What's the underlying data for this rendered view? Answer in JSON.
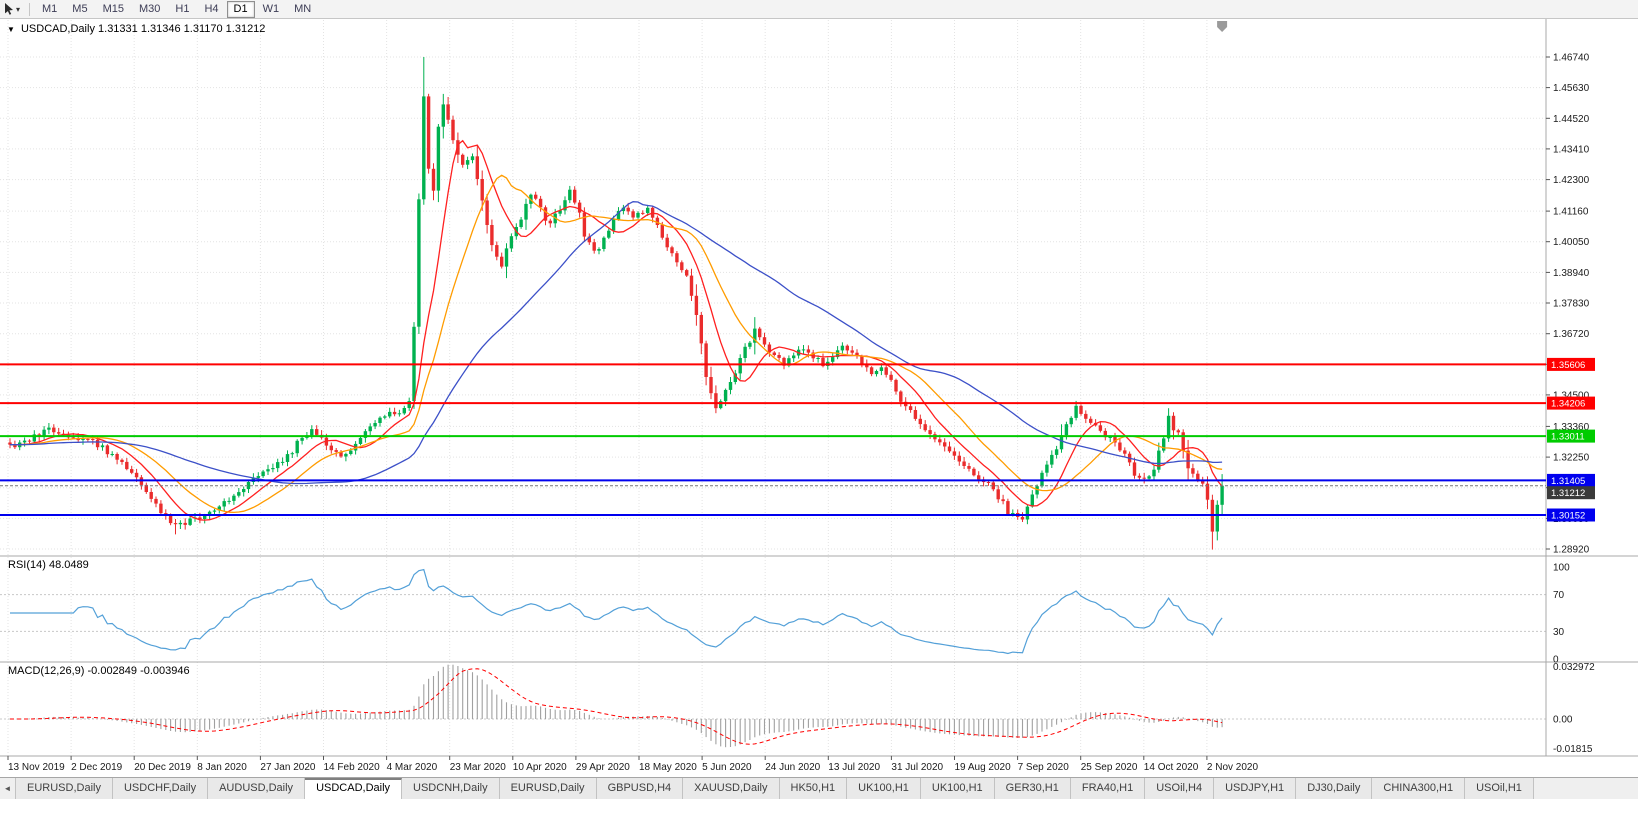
{
  "toolbar": {
    "timeframes": [
      "M1",
      "M5",
      "M15",
      "M30",
      "H1",
      "H4",
      "D1",
      "W1",
      "MN"
    ],
    "active_timeframe": "D1"
  },
  "chart_data": {
    "type": "candlestick",
    "title": "USDCAD,Daily",
    "symbol": "USDCAD",
    "timeframe": "Daily",
    "ohlc": {
      "open": "1.31331",
      "high": "1.31346",
      "low": "1.31170",
      "close": "1.31212"
    },
    "ohlc_text": "1.31331 1.31346 1.31170 1.31212",
    "price_axis": [
      "1.46740",
      "1.45630",
      "1.44520",
      "1.43410",
      "1.42300",
      "1.41160",
      "1.40050",
      "1.38940",
      "1.37830",
      "1.36720",
      "1.35610",
      "1.34500",
      "1.33360",
      "1.32250",
      "1.31140",
      "1.30030",
      "1.28920"
    ],
    "date_axis": [
      "13 Nov 2019",
      "2 Dec 2019",
      "20 Dec 2019",
      "8 Jan 2020",
      "27 Jan 2020",
      "14 Feb 2020",
      "4 Mar 2020",
      "23 Mar 2020",
      "10 Apr 2020",
      "29 Apr 2020",
      "18 May 2020",
      "5 Jun 2020",
      "24 Jun 2020",
      "13 Jul 2020",
      "31 Jul 2020",
      "19 Aug 2020",
      "7 Sep 2020",
      "25 Sep 2020",
      "14 Oct 2020",
      "2 Nov 2020"
    ],
    "hlines": [
      {
        "price": 1.35606,
        "label": "1.35606",
        "color": "#ff0000"
      },
      {
        "price": 1.34206,
        "label": "1.34206",
        "color": "#ff0000"
      },
      {
        "price": 1.33011,
        "label": "1.33011",
        "color": "#00cc00"
      },
      {
        "price": 1.31405,
        "label": "1.31405",
        "color": "#0000ee"
      },
      {
        "price": 1.30152,
        "label": "1.30152",
        "color": "#0000ee"
      }
    ],
    "current_price": {
      "value": 1.31212,
      "label": "1.31212",
      "badge_color": "#3a3a3a"
    },
    "colors": {
      "up": "#00b14f",
      "down": "#ea2c2c",
      "grid": "#e3e3e3",
      "axis_text": "#1a1a1a"
    },
    "moving_averages": [
      {
        "period": 9,
        "color": "#ff2020"
      },
      {
        "period": 18,
        "color": "#ff9c00"
      },
      {
        "period": 45,
        "color": "#3c50c8"
      }
    ],
    "close_anchors": [
      [
        0,
        1.3265
      ],
      [
        3,
        1.3285
      ],
      [
        6,
        1.331
      ],
      [
        8,
        1.3325
      ],
      [
        10,
        1.331
      ],
      [
        12,
        1.329
      ],
      [
        14,
        1.328
      ],
      [
        16,
        1.33
      ],
      [
        18,
        1.327
      ],
      [
        20,
        1.3245
      ],
      [
        22,
        1.3215
      ],
      [
        25,
        1.3165
      ],
      [
        28,
        1.3095
      ],
      [
        31,
        1.3025
      ],
      [
        34,
        1.2975
      ],
      [
        37,
        1.2995
      ],
      [
        40,
        1.302
      ],
      [
        43,
        1.3055
      ],
      [
        46,
        1.3075
      ],
      [
        49,
        1.3125
      ],
      [
        52,
        1.3165
      ],
      [
        55,
        1.3205
      ],
      [
        58,
        1.3245
      ],
      [
        60,
        1.3305
      ],
      [
        62,
        1.3325
      ],
      [
        64,
        1.329
      ],
      [
        66,
        1.326
      ],
      [
        68,
        1.3235
      ],
      [
        70,
        1.326
      ],
      [
        72,
        1.3295
      ],
      [
        74,
        1.333
      ],
      [
        76,
        1.336
      ],
      [
        78,
        1.34
      ],
      [
        80,
        1.338
      ],
      [
        82,
        1.3425
      ],
      [
        83,
        1.37
      ],
      [
        84,
        1.415
      ],
      [
        85,
        1.452
      ],
      [
        86,
        1.428
      ],
      [
        87,
        1.42
      ],
      [
        88,
        1.442
      ],
      [
        89,
        1.45
      ],
      [
        91,
        1.438
      ],
      [
        93,
        1.428
      ],
      [
        95,
        1.432
      ],
      [
        97,
        1.415
      ],
      [
        99,
        1.4
      ],
      [
        101,
        1.392
      ],
      [
        103,
        1.402
      ],
      [
        105,
        1.408
      ],
      [
        107,
        1.418
      ],
      [
        109,
        1.412
      ],
      [
        111,
        1.406
      ],
      [
        113,
        1.413
      ],
      [
        115,
        1.419
      ],
      [
        117,
        1.41
      ],
      [
        118,
        1.4035
      ],
      [
        120,
        1.3965
      ],
      [
        122,
        1.4015
      ],
      [
        124,
        1.4085
      ],
      [
        126,
        1.4135
      ],
      [
        128,
        1.4085
      ],
      [
        131,
        1.4125
      ],
      [
        133,
        1.4065
      ],
      [
        135,
        1.3985
      ],
      [
        137,
        1.3935
      ],
      [
        139,
        1.3875
      ],
      [
        141,
        1.3745
      ],
      [
        143,
        1.352
      ],
      [
        145,
        1.3405
      ],
      [
        147,
        1.347
      ],
      [
        149,
        1.354
      ],
      [
        151,
        1.362
      ],
      [
        153,
        1.368
      ],
      [
        155,
        1.3625
      ],
      [
        157,
        1.359
      ],
      [
        159,
        1.3565
      ],
      [
        161,
        1.3595
      ],
      [
        163,
        1.3625
      ],
      [
        165,
        1.3585
      ],
      [
        167,
        1.3565
      ],
      [
        169,
        1.3585
      ],
      [
        171,
        1.362
      ],
      [
        173,
        1.36
      ],
      [
        175,
        1.356
      ],
      [
        177,
        1.3535
      ],
      [
        179,
        1.356
      ],
      [
        181,
        1.35
      ],
      [
        183,
        1.3415
      ],
      [
        185,
        1.339
      ],
      [
        187,
        1.334
      ],
      [
        189,
        1.33
      ],
      [
        191,
        1.328
      ],
      [
        193,
        1.325
      ],
      [
        195,
        1.3205
      ],
      [
        197,
        1.318
      ],
      [
        199,
        1.3155
      ],
      [
        201,
        1.313
      ],
      [
        203,
        1.308
      ],
      [
        205,
        1.303
      ],
      [
        207,
        1.301
      ],
      [
        208,
        1.2995
      ],
      [
        210,
        1.3085
      ],
      [
        212,
        1.3165
      ],
      [
        214,
        1.3225
      ],
      [
        216,
        1.3305
      ],
      [
        218,
        1.3375
      ],
      [
        219,
        1.3405
      ],
      [
        221,
        1.3375
      ],
      [
        223,
        1.3335
      ],
      [
        225,
        1.3305
      ],
      [
        227,
        1.3285
      ],
      [
        229,
        1.3235
      ],
      [
        231,
        1.3165
      ],
      [
        233,
        1.3135
      ],
      [
        235,
        1.3185
      ],
      [
        237,
        1.3295
      ],
      [
        238,
        1.3365
      ],
      [
        239,
        1.3325
      ],
      [
        240,
        1.3305
      ],
      [
        241,
        1.3245
      ],
      [
        242,
        1.3185
      ],
      [
        243,
        1.3155
      ],
      [
        244,
        1.3135
      ],
      [
        245,
        1.3125
      ],
      [
        246,
        1.3065
      ],
      [
        247,
        1.2955
      ],
      [
        248,
        1.3045
      ],
      [
        249,
        1.31212
      ]
    ],
    "wick_overrides": [
      {
        "i": 85,
        "high": 1.4674
      },
      {
        "i": 34,
        "low": 1.2945
      },
      {
        "i": 208,
        "low": 1.299
      },
      {
        "i": 238,
        "high": 1.3402
      },
      {
        "i": 247,
        "low": 1.289
      }
    ]
  },
  "rsi": {
    "label": "RSI(14)",
    "value": "48.0489",
    "period": 14,
    "axis_labels": [
      "100",
      "70",
      "30",
      "0"
    ],
    "axis_values": [
      100,
      70,
      30,
      0
    ],
    "levels": [
      70,
      30
    ],
    "color": "#53a0d8"
  },
  "macd": {
    "label": "MACD(12,26,9)",
    "values": "-0.002849 -0.003946",
    "value_main": "-0.002849",
    "value_signal": "-0.003946",
    "fast": 12,
    "slow": 26,
    "signal": 9,
    "axis_top": "0.032972",
    "axis_zero": "0.00",
    "axis_bottom": "-0.01815",
    "hist_color": "#a0a0a0",
    "signal_color": "#ff0000"
  },
  "tabs": {
    "active_index": 3,
    "items": [
      {
        "label": "EURUSD,Daily"
      },
      {
        "label": "USDCHF,Daily"
      },
      {
        "label": "AUDUSD,Daily"
      },
      {
        "label": "USDCAD,Daily"
      },
      {
        "label": "USDCNH,Daily"
      },
      {
        "label": "EURUSD,Daily"
      },
      {
        "label": "GBPUSD,H4"
      },
      {
        "label": "XAUUSD,Daily"
      },
      {
        "label": "HK50,H1"
      },
      {
        "label": "UK100,H1"
      },
      {
        "label": "UK100,H1"
      },
      {
        "label": "GER30,H1"
      },
      {
        "label": "FRA40,H1"
      },
      {
        "label": "USOil,H4"
      },
      {
        "label": "USDJPY,H1"
      },
      {
        "label": "DJ30,Daily"
      },
      {
        "label": "CHINA300,H1"
      },
      {
        "label": "USOil,H1"
      }
    ]
  }
}
